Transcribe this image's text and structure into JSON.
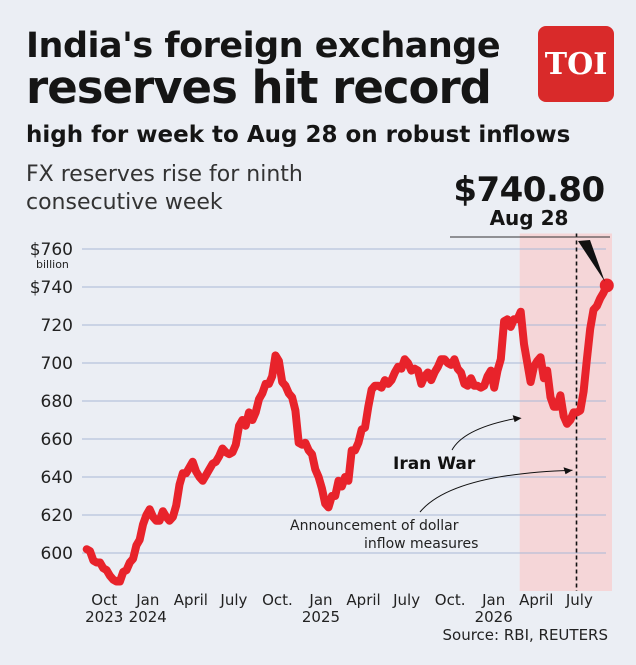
{
  "header": {
    "headline_line1": "India's foreign exchange",
    "headline_line2": "reserves hit record",
    "subhead": "high for week to Aug 28 on robust inflows",
    "logo_text": "TOI"
  },
  "callout": {
    "value": "$740.80",
    "date": "Aug 28"
  },
  "source": "Source: RBI, REUTERS",
  "colors": {
    "background": "#ebeef4",
    "line": "#e8232b",
    "highlight_band": "#f5d6d8",
    "gridline": "#a9b8d6",
    "logo": "#d92a2a"
  },
  "chart_data": {
    "type": "line",
    "title": "FX reserves rise for ninth consecutive week",
    "ylabel_unit": "billion",
    "ylim": [
      580,
      765
    ],
    "y_ticks": [
      {
        "value": 760,
        "label": "$760"
      },
      {
        "value": 740,
        "label": "$740"
      },
      {
        "value": 720,
        "label": "720"
      },
      {
        "value": 700,
        "label": "700"
      },
      {
        "value": 680,
        "label": "680"
      },
      {
        "value": 660,
        "label": "660"
      },
      {
        "value": 640,
        "label": "640"
      },
      {
        "value": 620,
        "label": "620"
      },
      {
        "value": 600,
        "label": "600"
      }
    ],
    "x_ticks": [
      {
        "date": "2023-10-01",
        "line1": "Oct",
        "line2": "2023"
      },
      {
        "date": "2024-01-01",
        "line1": "Jan",
        "line2": "2024"
      },
      {
        "date": "2024-04-01",
        "line1": "April",
        "line2": ""
      },
      {
        "date": "2024-07-01",
        "line1": "July",
        "line2": ""
      },
      {
        "date": "2024-10-01",
        "line1": "Oct.",
        "line2": ""
      },
      {
        "date": "2025-01-01",
        "line1": "Jan",
        "line2": "2025"
      },
      {
        "date": "2025-04-01",
        "line1": "April",
        "line2": ""
      },
      {
        "date": "2025-07-01",
        "line1": "July",
        "line2": ""
      },
      {
        "date": "2025-10-01",
        "line1": "Oct.",
        "line2": ""
      },
      {
        "date": "2026-01-01",
        "line1": "Jan",
        "line2": "2026"
      },
      {
        "date": "2026-04-01",
        "line1": "April",
        "line2": ""
      },
      {
        "date": "2026-07-01",
        "line1": "July",
        "line2": ""
      }
    ],
    "x_range": [
      "2023-08-15",
      "2026-09-08"
    ],
    "highlight_range": [
      "2026-02-25",
      "2026-09-08"
    ],
    "series": [
      {
        "points": [
          [
            "2023-08-25",
            602
          ],
          [
            "2023-09-01",
            601
          ],
          [
            "2023-09-08",
            596
          ],
          [
            "2023-09-15",
            595
          ],
          [
            "2023-09-22",
            595
          ],
          [
            "2023-09-29",
            592
          ],
          [
            "2023-10-06",
            591
          ],
          [
            "2023-10-13",
            588
          ],
          [
            "2023-10-20",
            586
          ],
          [
            "2023-10-27",
            585
          ],
          [
            "2023-11-03",
            585
          ],
          [
            "2023-11-10",
            590
          ],
          [
            "2023-11-17",
            591
          ],
          [
            "2023-11-24",
            595
          ],
          [
            "2023-12-01",
            597
          ],
          [
            "2023-12-08",
            604
          ],
          [
            "2023-12-15",
            607
          ],
          [
            "2023-12-22",
            615
          ],
          [
            "2023-12-29",
            620
          ],
          [
            "2024-01-05",
            623
          ],
          [
            "2024-01-12",
            619
          ],
          [
            "2024-01-19",
            617
          ],
          [
            "2024-01-26",
            617
          ],
          [
            "2024-02-02",
            622
          ],
          [
            "2024-02-09",
            619
          ],
          [
            "2024-02-16",
            617
          ],
          [
            "2024-02-23",
            619
          ],
          [
            "2024-03-01",
            625
          ],
          [
            "2024-03-08",
            636
          ],
          [
            "2024-03-15",
            642
          ],
          [
            "2024-03-22",
            642
          ],
          [
            "2024-03-29",
            645
          ],
          [
            "2024-04-05",
            648
          ],
          [
            "2024-04-12",
            643
          ],
          [
            "2024-04-19",
            640
          ],
          [
            "2024-04-26",
            638
          ],
          [
            "2024-05-03",
            641
          ],
          [
            "2024-05-10",
            644
          ],
          [
            "2024-05-17",
            647
          ],
          [
            "2024-05-24",
            648
          ],
          [
            "2024-05-31",
            651
          ],
          [
            "2024-06-07",
            655
          ],
          [
            "2024-06-14",
            653
          ],
          [
            "2024-06-21",
            652
          ],
          [
            "2024-06-28",
            653
          ],
          [
            "2024-07-05",
            657
          ],
          [
            "2024-07-12",
            667
          ],
          [
            "2024-07-19",
            670
          ],
          [
            "2024-07-26",
            667
          ],
          [
            "2024-08-02",
            674
          ],
          [
            "2024-08-09",
            670
          ],
          [
            "2024-08-16",
            674
          ],
          [
            "2024-08-23",
            681
          ],
          [
            "2024-08-30",
            684
          ],
          [
            "2024-09-06",
            689
          ],
          [
            "2024-09-13",
            689
          ],
          [
            "2024-09-20",
            693
          ],
          [
            "2024-09-27",
            704
          ],
          [
            "2024-10-04",
            701
          ],
          [
            "2024-10-11",
            690
          ],
          [
            "2024-10-18",
            688
          ],
          [
            "2024-10-25",
            684
          ],
          [
            "2024-11-01",
            682
          ],
          [
            "2024-11-08",
            675
          ],
          [
            "2024-11-15",
            658
          ],
          [
            "2024-11-22",
            657
          ],
          [
            "2024-11-29",
            658
          ],
          [
            "2024-12-06",
            654
          ],
          [
            "2024-12-13",
            652
          ],
          [
            "2024-12-20",
            644
          ],
          [
            "2024-12-27",
            640
          ],
          [
            "2025-01-03",
            634
          ],
          [
            "2025-01-10",
            626
          ],
          [
            "2025-01-17",
            624
          ],
          [
            "2025-01-24",
            630
          ],
          [
            "2025-01-31",
            630
          ],
          [
            "2025-02-07",
            638
          ],
          [
            "2025-02-14",
            635
          ],
          [
            "2025-02-21",
            640
          ],
          [
            "2025-02-28",
            638
          ],
          [
            "2025-03-07",
            654
          ],
          [
            "2025-03-14",
            654
          ],
          [
            "2025-03-21",
            658
          ],
          [
            "2025-03-28",
            665
          ],
          [
            "2025-04-04",
            666
          ],
          [
            "2025-04-11",
            677
          ],
          [
            "2025-04-18",
            686
          ],
          [
            "2025-04-25",
            688
          ],
          [
            "2025-05-02",
            688
          ],
          [
            "2025-05-09",
            687
          ],
          [
            "2025-05-16",
            691
          ],
          [
            "2025-05-23",
            689
          ],
          [
            "2025-05-30",
            691
          ],
          [
            "2025-06-06",
            695
          ],
          [
            "2025-06-13",
            698
          ],
          [
            "2025-06-20",
            697
          ],
          [
            "2025-06-27",
            702
          ],
          [
            "2025-07-04",
            700
          ],
          [
            "2025-07-11",
            696
          ],
          [
            "2025-07-18",
            697
          ],
          [
            "2025-07-25",
            696
          ],
          [
            "2025-08-01",
            689
          ],
          [
            "2025-08-08",
            693
          ],
          [
            "2025-08-15",
            695
          ],
          [
            "2025-08-22",
            691
          ],
          [
            "2025-08-29",
            695
          ],
          [
            "2025-09-05",
            698
          ],
          [
            "2025-09-12",
            702
          ],
          [
            "2025-09-19",
            702
          ],
          [
            "2025-09-26",
            700
          ],
          [
            "2025-10-03",
            699
          ],
          [
            "2025-10-10",
            702
          ],
          [
            "2025-10-17",
            697
          ],
          [
            "2025-10-24",
            695
          ],
          [
            "2025-10-31",
            689
          ],
          [
            "2025-11-07",
            688
          ],
          [
            "2025-11-14",
            692
          ],
          [
            "2025-11-21",
            688
          ],
          [
            "2025-11-28",
            688
          ],
          [
            "2025-12-05",
            687
          ],
          [
            "2025-12-12",
            688
          ],
          [
            "2025-12-19",
            693
          ],
          [
            "2025-12-26",
            696
          ],
          [
            "2026-01-02",
            687
          ],
          [
            "2026-01-09",
            696
          ],
          [
            "2026-01-16",
            702
          ],
          [
            "2026-01-23",
            722
          ],
          [
            "2026-01-30",
            723
          ],
          [
            "2026-02-06",
            719
          ],
          [
            "2026-02-13",
            723
          ],
          [
            "2026-02-20",
            723
          ],
          [
            "2026-02-27",
            727
          ],
          [
            "2026-03-06",
            710
          ],
          [
            "2026-03-13",
            700
          ],
          [
            "2026-03-20",
            690
          ],
          [
            "2026-03-27",
            698
          ],
          [
            "2026-04-03",
            701
          ],
          [
            "2026-04-10",
            703
          ],
          [
            "2026-04-17",
            692
          ],
          [
            "2026-04-24",
            696
          ],
          [
            "2026-05-01",
            682
          ],
          [
            "2026-05-08",
            677
          ],
          [
            "2026-05-15",
            677
          ],
          [
            "2026-05-22",
            683
          ],
          [
            "2026-05-29",
            672
          ],
          [
            "2026-06-05",
            668
          ],
          [
            "2026-06-12",
            670
          ],
          [
            "2026-06-19",
            674
          ],
          [
            "2026-06-26",
            674
          ],
          [
            "2026-07-03",
            675
          ],
          [
            "2026-07-10",
            685
          ],
          [
            "2026-07-17",
            702
          ],
          [
            "2026-07-24",
            718
          ],
          [
            "2026-07-31",
            728
          ],
          [
            "2026-08-07",
            730
          ],
          [
            "2026-08-14",
            734
          ],
          [
            "2026-08-21",
            737
          ],
          [
            "2026-08-28",
            740.8
          ]
        ]
      }
    ],
    "annotations": [
      {
        "text": "Iran War",
        "style": "bold",
        "target_date": "2026-03-01",
        "target_value": 671
      },
      {
        "text_lines": [
          "Announcement of dollar",
          "inflow measures"
        ],
        "style": "normal",
        "target_date": "2026-06-25",
        "target_value": 652
      }
    ],
    "vline_date": "2026-06-25",
    "grid": true
  }
}
